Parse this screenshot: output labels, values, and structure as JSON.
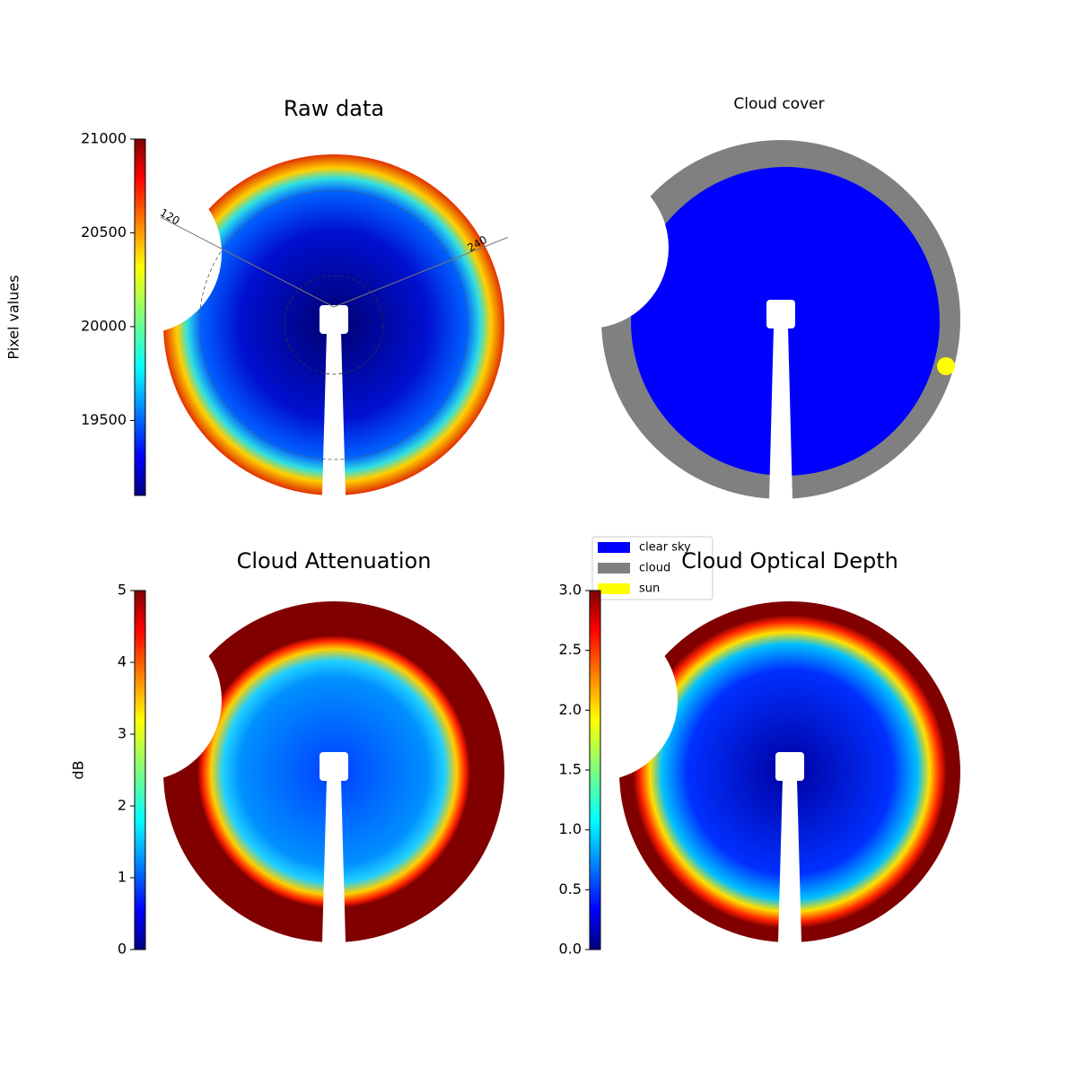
{
  "chart_data": [
    {
      "type": "image",
      "title": "Raw data",
      "colorbar_label": "Pixel values",
      "colormap": "jet",
      "ylim": [
        19100,
        21000
      ],
      "yticks": [
        19500,
        20000,
        20500,
        21000
      ],
      "annotations": [
        "120",
        "240"
      ]
    },
    {
      "type": "image",
      "title": "Cloud cover",
      "series": [
        {
          "name": "clear sky",
          "color": "#0000ff"
        },
        {
          "name": "cloud",
          "color": "#808080"
        },
        {
          "name": "sun",
          "color": "#ffff00"
        }
      ]
    },
    {
      "type": "image",
      "title": "Cloud Attenuation",
      "colorbar_label": "dB",
      "colormap": "jet",
      "ylim": [
        0,
        5
      ],
      "yticks": [
        0,
        1,
        2,
        3,
        4,
        5
      ]
    },
    {
      "type": "image",
      "title": "Cloud Optical Depth",
      "colormap": "jet",
      "ylim": [
        0,
        3
      ],
      "yticks": [
        {
          "value": 0,
          "label": "0.0"
        },
        0.5,
        {
          "value": 1,
          "label": "1.0"
        },
        1.5,
        {
          "value": 2,
          "label": "2.0"
        },
        2.5,
        {
          "value": 3,
          "label": "3.0"
        }
      ]
    }
  ]
}
